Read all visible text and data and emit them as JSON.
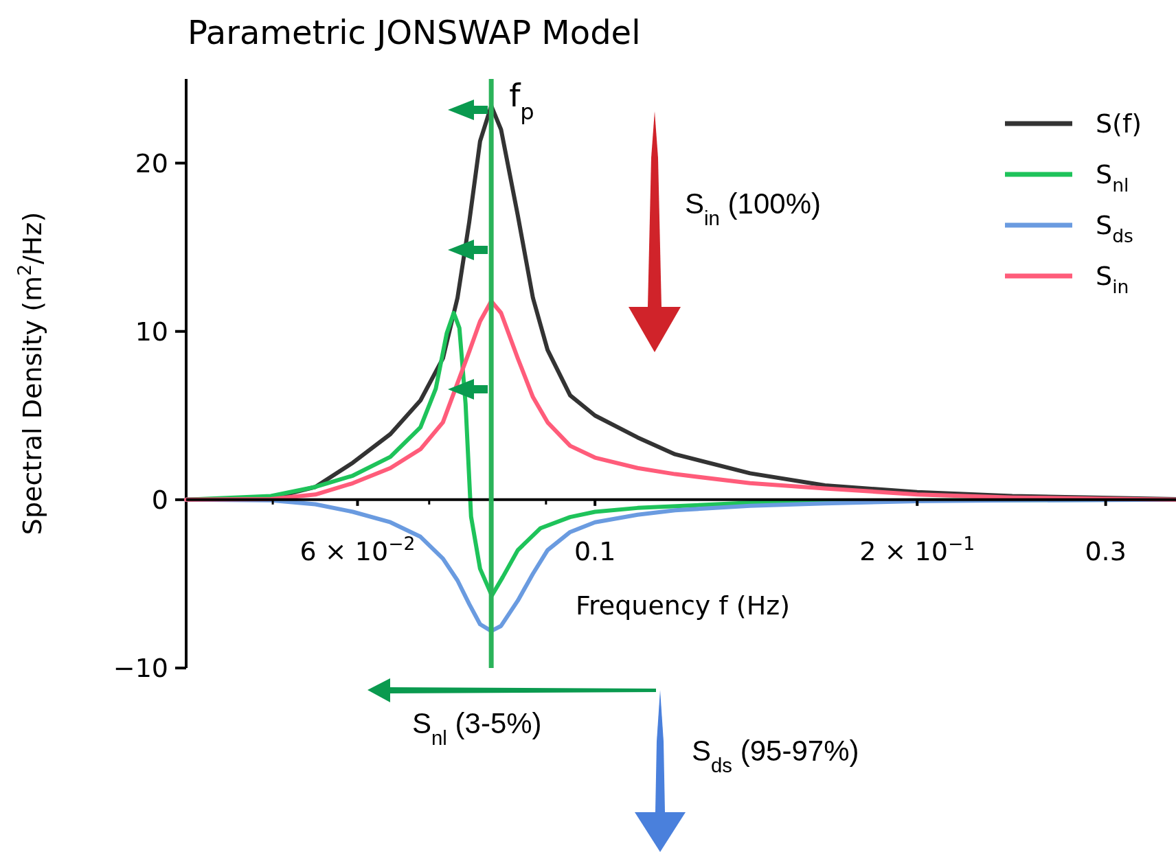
{
  "chart_data": {
    "type": "line",
    "title": "Parametric JONSWAP Model",
    "xlabel": "Frequency f (Hz)",
    "ylabel": "Spectral Density (m$^{2}$/Hz)",
    "log": "x",
    "xlim": [
      0.0415,
      0.349
    ],
    "ylim": [
      -10,
      25
    ],
    "xticks": [
      {
        "value": 0.05,
        "label": null
      },
      {
        "value": 0.06,
        "label": "6 × 10$^{−2}$"
      },
      {
        "value": 0.07,
        "label": null
      },
      {
        "value": 0.08,
        "label": null
      },
      {
        "value": 0.09,
        "label": null
      },
      {
        "value": 0.1,
        "label": "0.1"
      },
      {
        "value": 0.2,
        "label": "2 × 10$^{−1}$"
      },
      {
        "value": 0.3,
        "label": "0.3"
      }
    ],
    "yticks": [
      -10,
      0,
      10,
      20
    ],
    "grid": false,
    "legend": "top right",
    "marker": "none",
    "line_style": "solid",
    "x": [
      0.0415,
      0.0498,
      0.0548,
      0.0594,
      0.0644,
      0.0687,
      0.0721,
      0.0744,
      0.0763,
      0.0781,
      0.08,
      0.0817,
      0.0847,
      0.0875,
      0.0903,
      0.0948,
      0.1,
      0.1096,
      0.1188,
      0.1396,
      0.164,
      0.2,
      0.2454,
      0.349
    ],
    "series": [
      {
        "name": "S(f)",
        "color": "#333333",
        "values": [
          0,
          0.09,
          0.76,
          2.2,
          3.9,
          5.9,
          8.4,
          12.0,
          16.5,
          21.3,
          23.4,
          22.0,
          16.9,
          12.0,
          8.9,
          6.2,
          5.0,
          3.7,
          2.7,
          1.57,
          0.85,
          0.45,
          0.22,
          0.04
        ]
      },
      {
        "name": "S$_{nl}$",
        "color": "#1ec35a",
        "x": [
          0.0415,
          0.0498,
          0.0548,
          0.0594,
          0.0644,
          0.0687,
          0.071,
          0.0727,
          0.0738,
          0.0747,
          0.0757,
          0.0766,
          0.0781,
          0.0801,
          0.082,
          0.0847,
          0.0889,
          0.0948,
          0.1,
          0.1096,
          0.1396,
          0.2,
          0.349
        ],
        "values": [
          0,
          0.22,
          0.76,
          1.43,
          2.55,
          4.3,
          6.6,
          9.9,
          11.1,
          10.2,
          5.7,
          -1.0,
          -4.1,
          -5.7,
          -4.6,
          -3.0,
          -1.7,
          -1.03,
          -0.72,
          -0.49,
          -0.18,
          -0.04,
          0
        ]
      },
      {
        "name": "S$_{ds}$",
        "color": "#6a9be0",
        "values": [
          0,
          -0.04,
          -0.27,
          -0.72,
          -1.34,
          -2.2,
          -3.5,
          -4.8,
          -6.2,
          -7.4,
          -7.8,
          -7.5,
          -6.0,
          -4.4,
          -3.0,
          -1.92,
          -1.34,
          -0.89,
          -0.63,
          -0.36,
          -0.22,
          -0.09,
          -0.04,
          0
        ]
      },
      {
        "name": "S$_{in}$",
        "color": "#ff5c7a",
        "x": [
          0.0415,
          0.0498,
          0.0548,
          0.0594,
          0.0644,
          0.0687,
          0.0721,
          0.0763,
          0.0781,
          0.08,
          0.0817,
          0.0847,
          0.0875,
          0.0903,
          0.0948,
          0.1,
          0.1096,
          0.1188,
          0.1396,
          0.164,
          0.2,
          0.2454,
          0.349
        ],
        "values": [
          0,
          0.04,
          0.31,
          0.98,
          1.88,
          3.0,
          4.6,
          8.8,
          10.6,
          11.8,
          11.1,
          8.4,
          6.1,
          4.6,
          3.2,
          2.5,
          1.88,
          1.52,
          0.98,
          0.67,
          0.31,
          0.13,
          0
        ]
      }
    ],
    "ref_lines": [
      {
        "axis": "x",
        "value": 0.08,
        "label": "f$_{p}$",
        "color": "#2bb35a"
      }
    ],
    "annotations": [
      "S$_{in}$ (100%)",
      "S$_{nl}$ (3-5%)",
      "S$_{ds}$ (95-97%)"
    ]
  }
}
